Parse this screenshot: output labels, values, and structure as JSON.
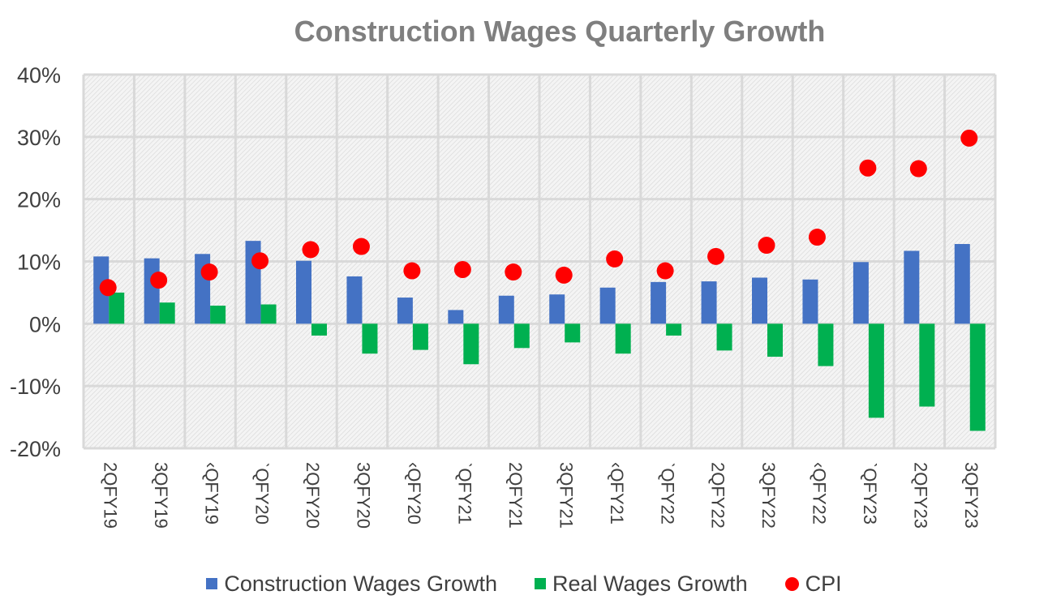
{
  "chart_data": {
    "type": "bar",
    "title": "Construction Wages Quarterly Growth",
    "xlabel": "",
    "ylabel": "",
    "ylim": [
      -20,
      40
    ],
    "yticks": [
      "40%",
      "30%",
      "20%",
      "10%",
      "0%",
      "-10%",
      "-20%"
    ],
    "categories": [
      "2QFY19",
      "3QFY19",
      "‹QFY19",
      "ˋQFY20",
      "2QFY20",
      "3QFY20",
      "‹QFY20",
      "ˋQFY21",
      "2QFY21",
      "3QFY21",
      "‹QFY21",
      "ˋQFY22",
      "2QFY22",
      "3QFY22",
      "‹QFY22",
      "ˋQFY23",
      "2QFY23",
      "3QFY23"
    ],
    "grid": true,
    "legend_position": "bottom",
    "series": [
      {
        "name": "Construction Wages Growth",
        "type": "bar",
        "color": "#4472c4",
        "values": [
          10.8,
          10.5,
          11.2,
          13.3,
          10.1,
          7.6,
          4.2,
          2.2,
          4.5,
          4.7,
          5.8,
          6.7,
          6.8,
          7.4,
          7.1,
          9.9,
          11.7,
          12.8
        ]
      },
      {
        "name": "Real Wages Growth",
        "type": "bar",
        "color": "#00b050",
        "values": [
          5.0,
          3.4,
          2.9,
          3.1,
          -1.9,
          -4.8,
          -4.2,
          -6.5,
          -3.9,
          -3.0,
          -4.8,
          -1.9,
          -4.3,
          -5.3,
          -6.8,
          -15.1,
          -13.3,
          -17.2
        ]
      },
      {
        "name": "CPI",
        "type": "scatter",
        "color": "#ff0000",
        "values": [
          5.8,
          7.0,
          8.3,
          10.1,
          11.9,
          12.4,
          8.5,
          8.7,
          8.3,
          7.8,
          10.4,
          8.5,
          10.8,
          12.6,
          13.9,
          25.0,
          24.9,
          29.8
        ]
      }
    ]
  },
  "legend": {
    "items": [
      {
        "label": "Construction Wages Growth",
        "color": "#4472c4",
        "shape": "square"
      },
      {
        "label": "Real Wages Growth",
        "color": "#00b050",
        "shape": "square"
      },
      {
        "label": "CPI",
        "color": "#ff0000",
        "shape": "circle"
      }
    ]
  }
}
